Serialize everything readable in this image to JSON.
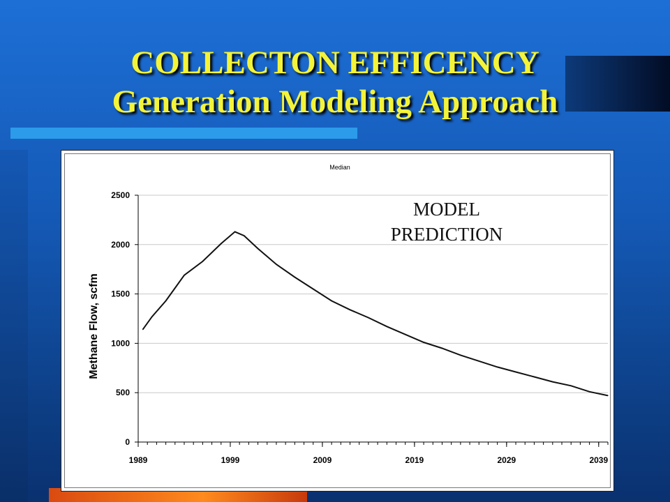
{
  "slide": {
    "title_line1": "COLLECTON EFFICENCY",
    "title_line2": "Generation Modeling Approach",
    "annotation_line1": "MODEL",
    "annotation_line2": "PREDICTION"
  },
  "colors": {
    "title": "#f3f33a",
    "curve": "#111111",
    "grid": "#c8c8c8"
  },
  "chart_data": {
    "type": "line",
    "title": "Median",
    "xlabel": "",
    "ylabel": "Methane Flow, scfm",
    "xlim": [
      1989,
      2040
    ],
    "ylim": [
      0,
      2500
    ],
    "yticks": [
      0,
      500,
      1000,
      1500,
      2000,
      2500
    ],
    "xticks": [
      1989,
      1999,
      2009,
      2019,
      2029,
      2039
    ],
    "grid": "horizontal",
    "series": [
      {
        "name": "",
        "x": [
          1989.5,
          1990.5,
          1992,
          1994,
          1996,
          1998,
          1999.5,
          2000.5,
          2002,
          2004,
          2006,
          2008,
          2010,
          2012,
          2014,
          2016,
          2018,
          2020,
          2022,
          2024,
          2026,
          2028,
          2030,
          2032,
          2034,
          2036,
          2038,
          2040
        ],
        "y": [
          1140,
          1270,
          1430,
          1690,
          1830,
          2010,
          2130,
          2090,
          1960,
          1800,
          1670,
          1550,
          1430,
          1340,
          1260,
          1170,
          1090,
          1010,
          950,
          880,
          820,
          760,
          710,
          660,
          610,
          570,
          510,
          470
        ]
      }
    ]
  }
}
